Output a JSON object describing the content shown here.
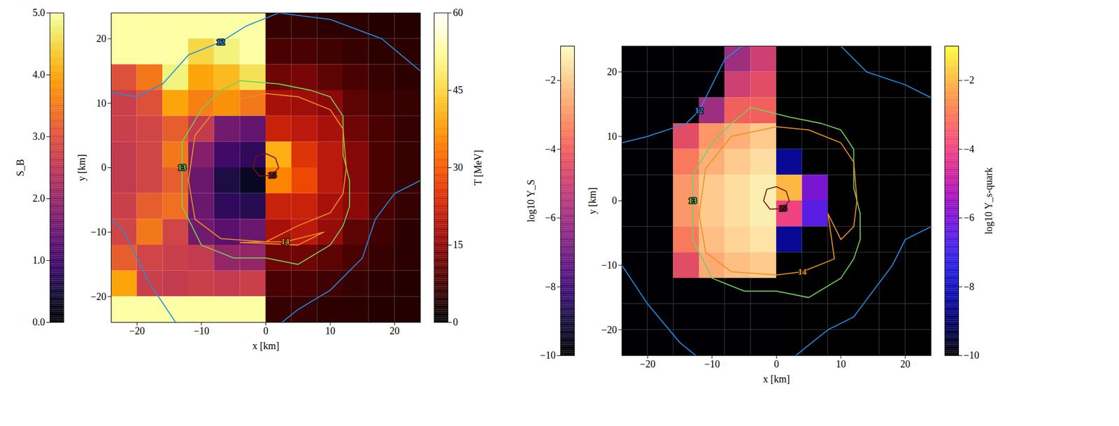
{
  "chart_data": [
    {
      "type": "heatmap",
      "xlabel": "x [km]",
      "ylabel": "y [km]",
      "xlim": [
        -24,
        24
      ],
      "ylim": [
        -24,
        24
      ],
      "xticks": [
        -20,
        -10,
        0,
        10,
        20
      ],
      "yticks": [
        -20,
        -10,
        0,
        10,
        20
      ],
      "y": [
        22,
        18,
        14,
        10,
        6,
        2,
        -2,
        -6,
        -10,
        -14,
        -18,
        -22
      ],
      "left": {
        "label": "S_B",
        "x": [
          -22,
          -18,
          -14,
          -10,
          -6,
          -2
        ],
        "colorbar": {
          "range": [
            0,
            5
          ],
          "ticks": [
            0,
            1,
            2,
            3,
            4,
            5
          ]
        },
        "values": [
          [
            5,
            5,
            5,
            5,
            5,
            5
          ],
          [
            5,
            5,
            5,
            4.5,
            4.8,
            5
          ],
          [
            3,
            3.5,
            4.8,
            4,
            4.2,
            4.6
          ],
          [
            2.7,
            3,
            4,
            3.6,
            3.8,
            3.5
          ],
          [
            2.7,
            2.8,
            3.2,
            2.6,
            1.6,
            1.4
          ],
          [
            2.6,
            2.8,
            3.5,
            1.8,
            1.0,
            0.8
          ],
          [
            2.6,
            2.8,
            3.2,
            1.5,
            0.6,
            0.3
          ],
          [
            2.7,
            3.2,
            3.4,
            1.5,
            0.8,
            0.7
          ],
          [
            2.8,
            3.5,
            2.8,
            1.6,
            1.3,
            1.5
          ],
          [
            3.2,
            2.8,
            2.7,
            2.6,
            2.0,
            2.0
          ],
          [
            4,
            2.7,
            2.6,
            2.7,
            2.6,
            2.7
          ],
          [
            5,
            5,
            5,
            5,
            5,
            5
          ]
        ]
      },
      "right": {
        "label": "T [MeV]",
        "x": [
          2,
          6,
          10,
          14,
          18,
          22
        ],
        "colorbar": {
          "range": [
            0,
            60
          ],
          "ticks": [
            0,
            15,
            30,
            45,
            60
          ]
        },
        "values": [
          [
            6,
            6,
            5,
            5,
            4,
            4
          ],
          [
            8,
            8,
            7,
            6,
            5,
            5
          ],
          [
            12,
            13,
            10,
            8,
            6,
            5
          ],
          [
            18,
            17,
            15,
            10,
            7,
            6
          ],
          [
            22,
            20,
            18,
            12,
            8,
            6
          ],
          [
            40,
            25,
            20,
            14,
            8,
            6
          ],
          [
            35,
            28,
            20,
            14,
            8,
            6
          ],
          [
            22,
            22,
            18,
            15,
            8,
            6
          ],
          [
            18,
            20,
            16,
            10,
            7,
            5
          ],
          [
            12,
            12,
            10,
            8,
            6,
            5
          ],
          [
            8,
            8,
            7,
            6,
            5,
            4
          ],
          [
            6,
            6,
            5,
            5,
            4,
            4
          ]
        ]
      },
      "contours": [
        {
          "level": 12,
          "color": "#1f8fe8",
          "x": [
            -7,
            -12,
            -16,
            -20,
            -26,
            -26,
            -22,
            -18,
            -14,
            -8,
            0,
            5,
            10,
            15,
            17,
            20,
            24,
            28,
            24,
            18,
            10,
            2,
            -3,
            -7
          ],
          "y": [
            19.5,
            17.5,
            13,
            11,
            12,
            -6,
            -10,
            -18,
            -24,
            -28,
            -26,
            -22,
            -19,
            -14,
            -8,
            -4,
            -2,
            5,
            15,
            20,
            23,
            24,
            22,
            19.5
          ]
        },
        {
          "level": 13,
          "color": "#6fd35a",
          "x": [
            -13,
            -13,
            -10,
            -7,
            -4,
            2,
            7,
            10,
            12,
            12,
            13,
            13,
            12,
            10,
            5,
            0,
            -5,
            -10,
            -13,
            -13
          ],
          "y": [
            0,
            4,
            9,
            12,
            13.5,
            13,
            12,
            11,
            8,
            2,
            -2,
            -6,
            -9,
            -12,
            -15,
            -14,
            -14,
            -12,
            -6,
            0
          ]
        },
        {
          "level": 14,
          "color": "#f0901e",
          "x": [
            3,
            0,
            -7,
            -11,
            -12,
            -11,
            -7,
            0,
            5,
            10,
            12,
            12.5,
            12,
            10,
            5,
            0,
            -4,
            5,
            9,
            3
          ],
          "y": [
            -11.5,
            -11.5,
            -11,
            -8,
            -2,
            5,
            10,
            11.5,
            11,
            9,
            6,
            0,
            -4,
            -7,
            -9,
            -11.5,
            -11.6,
            -12,
            -10,
            -11.5
          ]
        },
        {
          "level": 15,
          "color": "#7a1010",
          "x": [
            1,
            -1,
            -2,
            -1.5,
            0,
            1.5,
            2,
            1
          ],
          "y": [
            -1.2,
            -1.3,
            0,
            1.8,
            2.2,
            1.5,
            0,
            -1.2
          ]
        }
      ]
    },
    {
      "type": "heatmap",
      "xlabel": "x [km]",
      "ylabel": "y [km]",
      "xlim": [
        -24,
        24
      ],
      "ylim": [
        -24,
        24
      ],
      "xticks": [
        -20,
        -10,
        0,
        10,
        20
      ],
      "yticks": [
        -20,
        -10,
        0,
        10,
        20
      ],
      "y": [
        22,
        18,
        14,
        10,
        6,
        2,
        -2,
        -6,
        -10,
        -14,
        -18,
        -22
      ],
      "left": {
        "label": "log10 Y_S",
        "x": [
          -22,
          -18,
          -14,
          -10,
          -6,
          -2
        ],
        "colorbar": {
          "range": [
            -10,
            -1
          ],
          "ticks": [
            -10,
            -8,
            -6,
            -4,
            -2
          ]
        },
        "values": [
          [
            -10,
            -10,
            -10,
            -10,
            -6,
            -5
          ],
          [
            -10,
            -10,
            -10,
            -10,
            -5,
            -4.5
          ],
          [
            -10,
            -10,
            -10,
            -6,
            -4,
            -4
          ],
          [
            -10,
            -10,
            -4.5,
            -3,
            -2.5,
            -2
          ],
          [
            -10,
            -10,
            -3.5,
            -2.5,
            -2,
            -1.6
          ],
          [
            -10,
            -10,
            -3,
            -2,
            -1.6,
            -1.3
          ],
          [
            -10,
            -10,
            -3,
            -2,
            -1.6,
            -1.3
          ],
          [
            -10,
            -10,
            -3.5,
            -2.2,
            -1.8,
            -1.5
          ],
          [
            -10,
            -10,
            -4.5,
            -2.6,
            -2.2,
            -2
          ],
          [
            -10,
            -10,
            -10,
            -10,
            -10,
            -10
          ],
          [
            -10,
            -10,
            -10,
            -10,
            -10,
            -10
          ],
          [
            -10,
            -10,
            -10,
            -10,
            -10,
            -10
          ]
        ]
      },
      "right": {
        "label": "log10 Y_s-quark",
        "x": [
          2,
          6,
          10,
          14,
          18,
          22
        ],
        "colorbar": {
          "range": [
            -10,
            -1
          ],
          "ticks": [
            -10,
            -8,
            -6,
            -4,
            -2
          ]
        },
        "values": [
          [
            -10,
            -10,
            -10,
            -10,
            -10,
            -10
          ],
          [
            -10,
            -10,
            -10,
            -10,
            -10,
            -10
          ],
          [
            -10,
            -10,
            -10,
            -10,
            -10,
            -10
          ],
          [
            -10,
            -10,
            -10,
            -10,
            -10,
            -10
          ],
          [
            -8.5,
            -10,
            -10,
            -10,
            -10,
            -10
          ],
          [
            -2,
            -6,
            -10,
            -10,
            -10,
            -10
          ],
          [
            -4,
            -6.5,
            -10,
            -10,
            -10,
            -10
          ],
          [
            -8.5,
            -10,
            -10,
            -10,
            -10,
            -10
          ],
          [
            -10,
            -10,
            -10,
            -10,
            -10,
            -10
          ],
          [
            -10,
            -10,
            -10,
            -10,
            -10,
            -10
          ],
          [
            -10,
            -10,
            -10,
            -10,
            -10,
            -10
          ],
          [
            -10,
            -10,
            -10,
            -10,
            -10,
            -10
          ]
        ]
      },
      "contours": [
        {
          "level": 12,
          "color": "#1f8fe8",
          "x": [
            -12,
            -14,
            -20,
            -24,
            -26,
            -24,
            -20,
            -15,
            -10,
            0,
            3,
            8,
            12,
            15,
            18,
            20,
            24,
            28,
            24,
            20,
            14,
            10,
            0,
            -8,
            -12
          ],
          "y": [
            14,
            12,
            10,
            9,
            0,
            -10,
            -16,
            -22,
            -26,
            -26,
            -24,
            -20,
            -18,
            -14,
            -10,
            -6,
            -4,
            5,
            16,
            18,
            20,
            24,
            28,
            22,
            14
          ]
        },
        {
          "level": 13,
          "color": "#6fd35a",
          "x": [
            -13,
            -13,
            -10,
            -7,
            -4,
            2,
            7,
            10,
            12,
            12,
            13,
            13,
            12,
            10,
            5,
            0,
            -5,
            -10,
            -13,
            -13
          ],
          "y": [
            0,
            4,
            9,
            12,
            14.5,
            13,
            12,
            11,
            8,
            2,
            -2,
            -6,
            -9,
            -12,
            -15,
            -14,
            -14,
            -12,
            -6,
            0
          ]
        },
        {
          "level": 14,
          "color": "#f0901e",
          "x": [
            4,
            0,
            -7,
            -11,
            -12,
            -11,
            -7,
            0,
            5,
            10,
            12,
            12.5,
            12,
            10,
            8,
            9,
            4
          ],
          "y": [
            -11,
            -11.5,
            -11,
            -8,
            -2,
            5,
            10,
            11.5,
            11,
            9,
            6,
            0,
            -4,
            -6,
            -2,
            -9,
            -11
          ]
        },
        {
          "level": 15,
          "color": "#7a1010",
          "x": [
            1,
            -1,
            -2,
            -1.5,
            0,
            1.5,
            2,
            1
          ],
          "y": [
            -1.2,
            -1.3,
            0,
            1.8,
            2.2,
            1.5,
            0,
            -1.2
          ]
        }
      ]
    }
  ]
}
